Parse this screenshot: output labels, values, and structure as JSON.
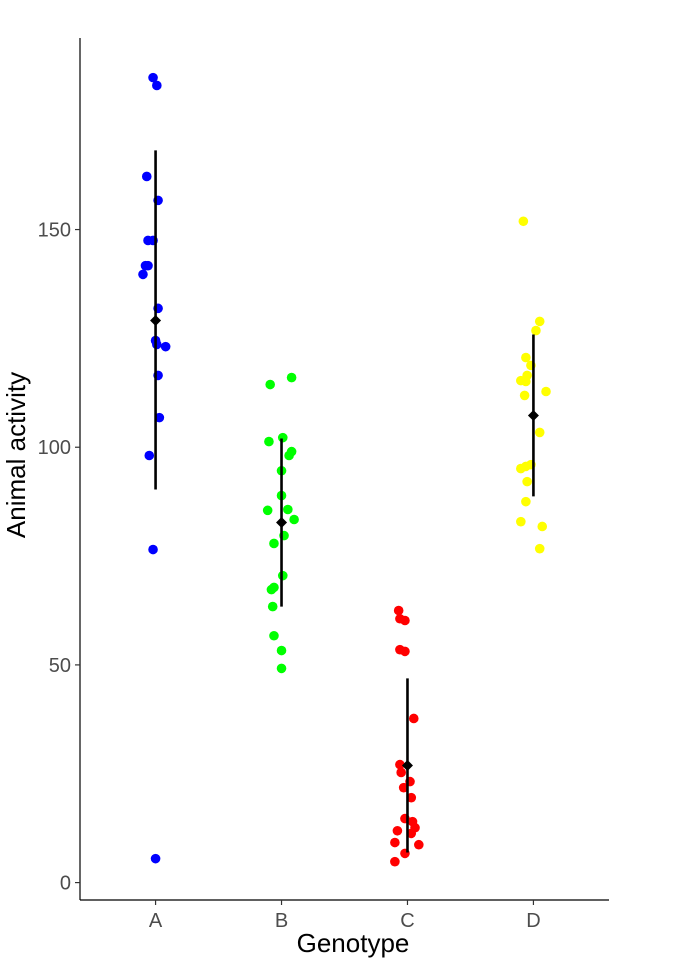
{
  "chart_data": {
    "type": "scatter",
    "title": "",
    "xlabel": "Genotype",
    "ylabel": "Animal activity",
    "categories": [
      "A",
      "B",
      "C",
      "D"
    ],
    "xlim": [
      0.4,
      4.6
    ],
    "ylim": [
      -4,
      194
    ],
    "yticks": [
      0,
      50,
      100,
      150
    ],
    "grid": false,
    "legend": "none",
    "summary_color": "#000000",
    "series": [
      {
        "category": "A",
        "color": "#0000ff",
        "mean": 129.1,
        "error_low": 90.3,
        "error_high": 168.2,
        "points": [
          [
            0.98,
            184.9
          ],
          [
            1.01,
            183.1
          ],
          [
            0.93,
            162.2
          ],
          [
            1.02,
            156.7
          ],
          [
            0.94,
            147.5
          ],
          [
            0.98,
            147.5
          ],
          [
            0.92,
            141.7
          ],
          [
            0.94,
            141.7
          ],
          [
            0.9,
            139.7
          ],
          [
            1.02,
            131.9
          ],
          [
            1.0,
            124.5
          ],
          [
            1.01,
            123.6
          ],
          [
            1.08,
            123.1
          ],
          [
            1.02,
            116.5
          ],
          [
            1.03,
            106.8
          ],
          [
            0.95,
            98.1
          ],
          [
            0.98,
            76.5
          ],
          [
            1.0,
            5.5
          ]
        ]
      },
      {
        "category": "B",
        "color": "#00ff00",
        "mean": 82.7,
        "error_low": 63.4,
        "error_high": 102.0,
        "points": [
          [
            2.08,
            116.0
          ],
          [
            1.91,
            114.4
          ],
          [
            2.01,
            102.2
          ],
          [
            1.9,
            101.3
          ],
          [
            2.08,
            99.0
          ],
          [
            2.06,
            98.1
          ],
          [
            2.0,
            94.6
          ],
          [
            2.0,
            88.9
          ],
          [
            2.05,
            85.7
          ],
          [
            1.89,
            85.5
          ],
          [
            2.1,
            83.4
          ],
          [
            2.02,
            79.7
          ],
          [
            1.94,
            77.9
          ],
          [
            2.01,
            70.5
          ],
          [
            1.94,
            67.8
          ],
          [
            1.92,
            67.3
          ],
          [
            1.93,
            63.4
          ],
          [
            1.94,
            56.7
          ],
          [
            2.0,
            53.3
          ],
          [
            2.0,
            49.2
          ]
        ]
      },
      {
        "category": "C",
        "color": "#ff0000",
        "mean": 26.9,
        "error_low": 6.9,
        "error_high": 46.9,
        "points": [
          [
            2.93,
            62.5
          ],
          [
            2.94,
            60.6
          ],
          [
            2.98,
            60.2
          ],
          [
            2.94,
            53.5
          ],
          [
            2.98,
            53.1
          ],
          [
            3.05,
            37.7
          ],
          [
            2.94,
            27.1
          ],
          [
            2.95,
            25.3
          ],
          [
            3.02,
            23.2
          ],
          [
            2.97,
            21.8
          ],
          [
            3.03,
            19.5
          ],
          [
            2.98,
            14.7
          ],
          [
            3.04,
            14.0
          ],
          [
            3.06,
            12.6
          ],
          [
            2.92,
            11.9
          ],
          [
            3.03,
            11.3
          ],
          [
            2.9,
            9.2
          ],
          [
            3.09,
            8.7
          ],
          [
            2.98,
            6.7
          ],
          [
            2.9,
            4.8
          ]
        ]
      },
      {
        "category": "D",
        "color": "#ffff00",
        "mean": 107.3,
        "error_low": 88.7,
        "error_high": 125.9,
        "points": [
          [
            3.92,
            151.9
          ],
          [
            4.05,
            128.9
          ],
          [
            4.02,
            126.8
          ],
          [
            3.94,
            120.6
          ],
          [
            3.98,
            118.8
          ],
          [
            3.95,
            116.5
          ],
          [
            3.9,
            115.3
          ],
          [
            3.94,
            115.1
          ],
          [
            4.1,
            112.8
          ],
          [
            3.93,
            111.9
          ],
          [
            4.05,
            103.4
          ],
          [
            3.98,
            96.0
          ],
          [
            3.94,
            95.6
          ],
          [
            3.9,
            95.1
          ],
          [
            3.95,
            92.1
          ],
          [
            3.94,
            87.5
          ],
          [
            3.9,
            82.9
          ],
          [
            4.07,
            81.8
          ],
          [
            4.05,
            76.7
          ]
        ]
      }
    ]
  }
}
